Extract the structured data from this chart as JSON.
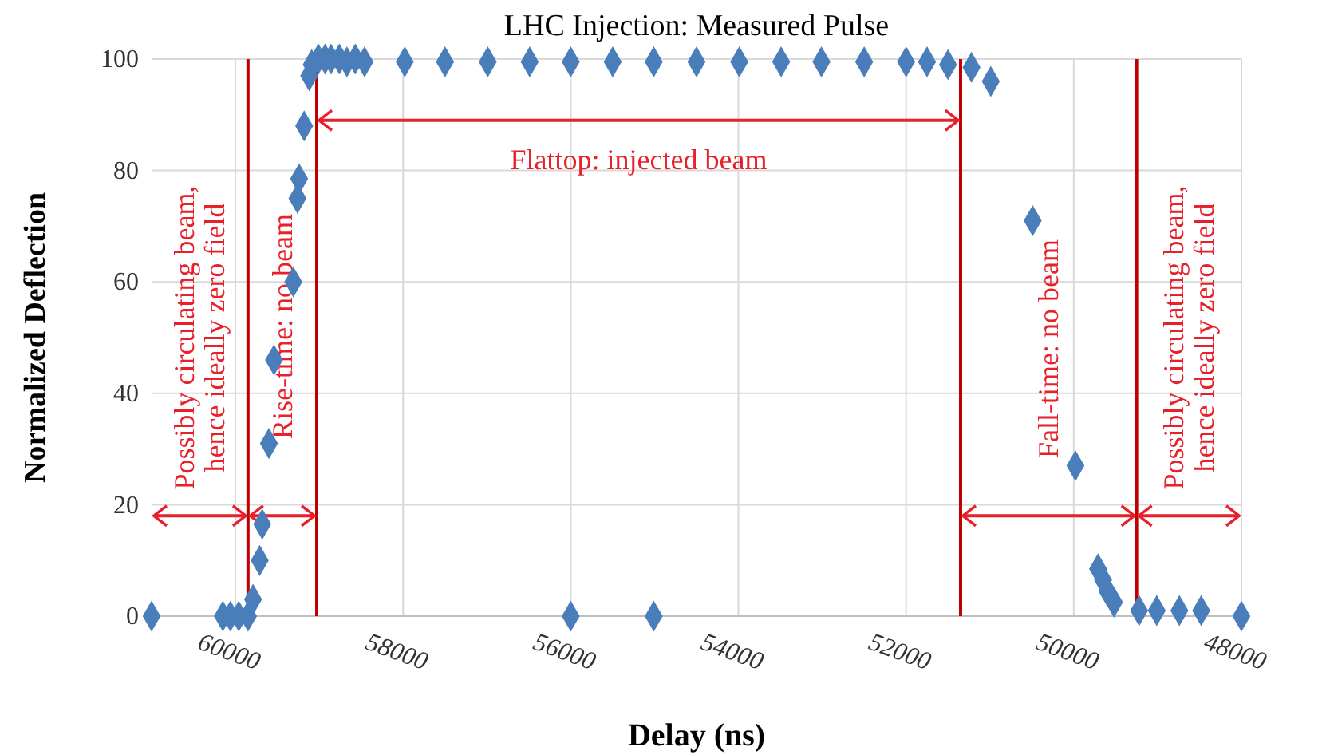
{
  "chart_data": {
    "type": "scatter",
    "title": "LHC Injection: Measured Pulse",
    "xlabel": "Delay (ns)",
    "ylabel": "Normalized  Deflection",
    "x": [
      61000,
      60150,
      60060,
      59960,
      59850,
      59790,
      59710,
      59680,
      59600,
      59540,
      59310,
      59260,
      59240,
      59180,
      59120,
      59090,
      59010,
      58930,
      58860,
      58760,
      58670,
      58570,
      58460,
      57980,
      57500,
      56990,
      56490,
      56000,
      55500,
      55010,
      54500,
      53990,
      53490,
      53010,
      52500,
      52000,
      51750,
      51500,
      51220,
      50990,
      50490,
      49980,
      49710,
      49650,
      49600,
      49520,
      49220,
      49010,
      48740,
      48480,
      48000,
      56000,
      55010
    ],
    "values": [
      0,
      0,
      0,
      0,
      0,
      3,
      10,
      16.5,
      31,
      46,
      60,
      75,
      78.5,
      88,
      97,
      99,
      100,
      100,
      100,
      100,
      99.5,
      100,
      99.5,
      99.5,
      99.5,
      99.5,
      99.5,
      99.5,
      99.5,
      99.5,
      99.5,
      99.5,
      99.5,
      99.5,
      99.5,
      99.5,
      99.5,
      99,
      98.5,
      96,
      71,
      27,
      8.5,
      6.5,
      4.5,
      2.5,
      1,
      1,
      1,
      1,
      0,
      0,
      0
    ],
    "color": "#4a7ebb",
    "marker": "diamond",
    "xlim": [
      61000,
      48000
    ],
    "xticks": [
      60000,
      58000,
      56000,
      54000,
      52000,
      50000,
      48000
    ],
    "ylim": [
      0,
      100
    ],
    "yticks": [
      0,
      20,
      40,
      60,
      80,
      100
    ],
    "grid": true,
    "ref_lines": [
      {
        "axis": "x",
        "value": 59850,
        "color": "#c00000"
      },
      {
        "axis": "x",
        "value": 59030,
        "color": "#c00000"
      },
      {
        "axis": "x",
        "value": 51350,
        "color": "#c00000"
      },
      {
        "axis": "x",
        "value": 49250,
        "color": "#c00000"
      }
    ],
    "annotations": [
      "Possibly circulating beam, hence ideally zero field",
      "Rise-time: no beam",
      "Flattop: injected beam",
      "Fall-time: no beam",
      "Possibly circulating beam, hence ideally zero field"
    ]
  }
}
